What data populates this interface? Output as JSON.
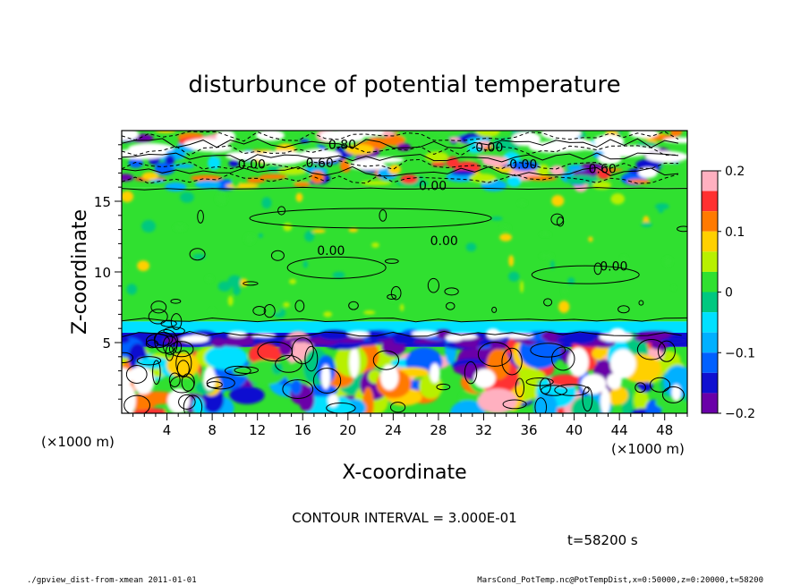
{
  "chart_data": {
    "type": "heatmap",
    "title": "disturbunce of potential temperature",
    "xlabel": "X-coordinate",
    "ylabel": "Z-coordinate",
    "x_unit": "(×1000 m)",
    "y_unit": "(×1000 m)",
    "xlim": [
      0,
      50
    ],
    "ylim": [
      0,
      20
    ],
    "x_ticks": [
      4,
      8,
      12,
      16,
      20,
      24,
      28,
      32,
      36,
      40,
      44,
      48
    ],
    "y_ticks": [
      5,
      10,
      15
    ],
    "colorbar": {
      "range": [
        -0.2,
        0.2
      ],
      "ticks": [
        "0.2",
        "0.1",
        "0",
        "−0.1",
        "−0.2"
      ],
      "colors": [
        "#ffb0c0",
        "#ff3030",
        "#ff7a00",
        "#ffd000",
        "#b8f000",
        "#30e030",
        "#00c880",
        "#00e0ff",
        "#00b0ff",
        "#0060ff",
        "#1010d0",
        "#6a00a8"
      ]
    },
    "layers": [
      {
        "z_min": 0,
        "z_max": 4.7,
        "pattern": "turbulent",
        "value_range": [
          -0.2,
          0.2
        ]
      },
      {
        "z_min": 4.7,
        "z_max": 5.7,
        "pattern": "cold band",
        "value": -0.15
      },
      {
        "z_min": 5.7,
        "z_max": 6.5,
        "pattern": "cyan band",
        "value": -0.05
      },
      {
        "z_min": 6.5,
        "z_max": 16,
        "pattern": "near zero",
        "value": 0.0
      },
      {
        "z_min": 16,
        "z_max": 20,
        "pattern": "strong disturbance",
        "value_range": [
          -0.2,
          0.2
        ]
      }
    ],
    "contour_labels": [
      "0.00",
      "0.00",
      "0.00",
      "0.00",
      "0.00",
      "0.80",
      "0.60",
      "0.00",
      "0.00",
      "0.60"
    ],
    "annotation": "CONTOUR INTERVAL = 3.000E-01",
    "time": "t=58200 s"
  },
  "footer": {
    "left": "./gpview_dist-from-xmean  2011-01-01",
    "right": "MarsCond_PotTemp.nc@PotTempDist,x=0:50000,z=0:20000,t=58200"
  }
}
